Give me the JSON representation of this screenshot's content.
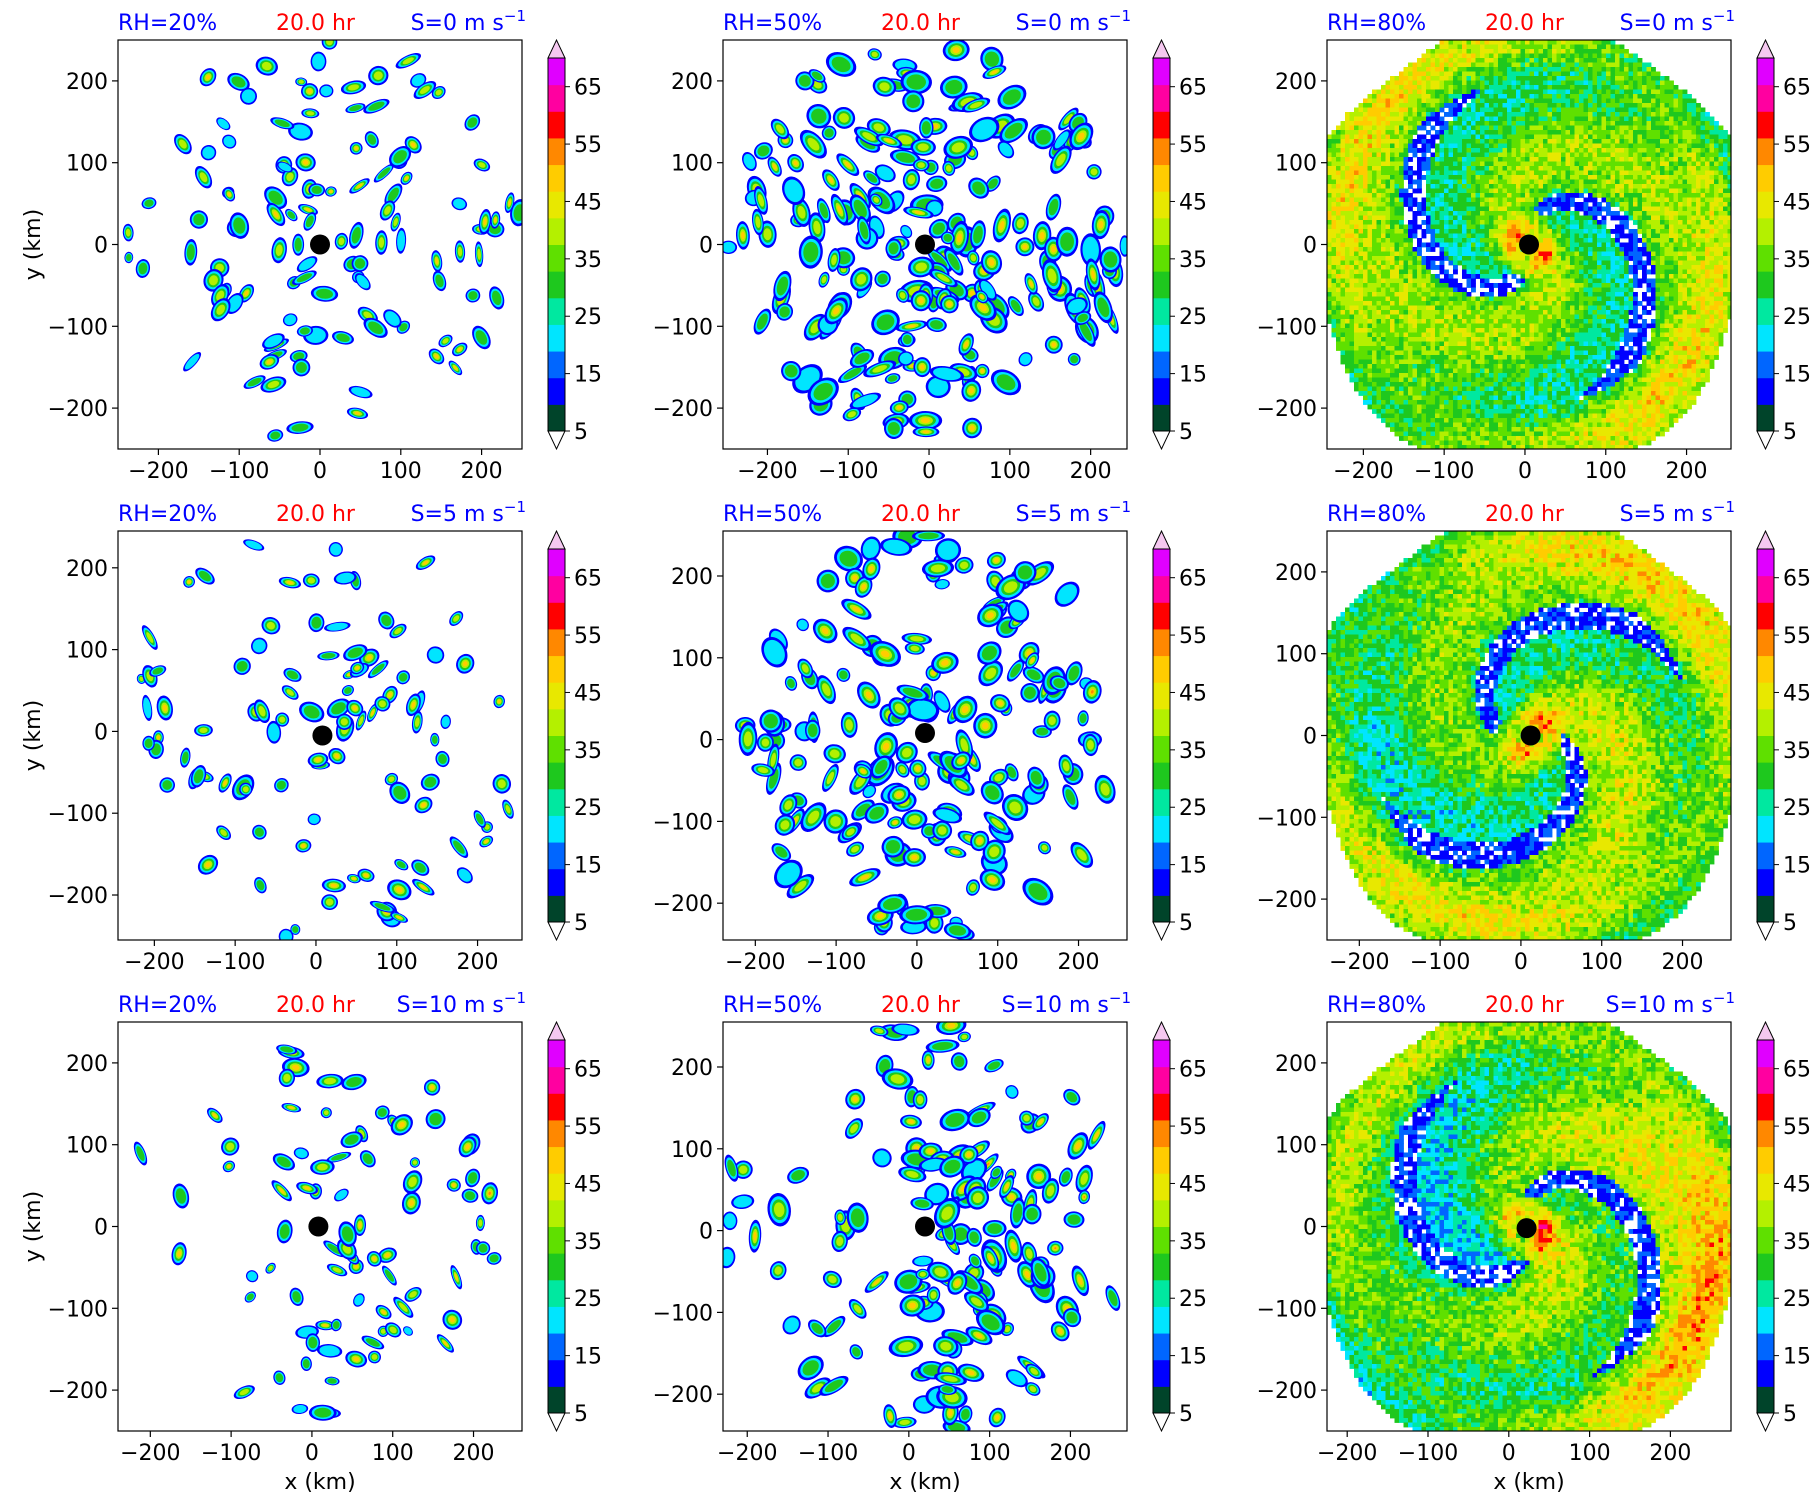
{
  "figure": {
    "time_label": "20.0 hr",
    "x_axis_label": "x (km)",
    "y_axis_label": "y (km)"
  },
  "colors": {
    "rh_label": "#0000ff",
    "time_label": "#ff0000",
    "shear_label": "#0000ff",
    "center_marker": "#000000"
  },
  "colorbar": {
    "levels": [
      5,
      10,
      15,
      20,
      25,
      30,
      35,
      40,
      45,
      50,
      55,
      60,
      65,
      70
    ],
    "tick_labels": [
      "5",
      "15",
      "25",
      "35",
      "45",
      "55",
      "65"
    ],
    "colors": [
      "#00442a",
      "#0000ff",
      "#0066ff",
      "#00e5ff",
      "#00e8a0",
      "#1ec81e",
      "#5fe000",
      "#b4f000",
      "#e8e800",
      "#ffcc00",
      "#ff8800",
      "#ff0000",
      "#ff00a0",
      "#e000ff",
      "#d070e8",
      "#f5c8f0"
    ],
    "extend": "both"
  },
  "chart_data": [
    {
      "type": "heatmap",
      "panel": "a",
      "rh": "RH=20%",
      "time": "20.0 hr",
      "shear_text": "S=0 m s",
      "shear_exp": "−1",
      "xlabel": "",
      "ylabel": "y (km)",
      "xlim": [
        -250,
        250
      ],
      "ylim": [
        -250,
        250
      ],
      "xticks": [
        -200,
        -100,
        0,
        100,
        200
      ],
      "yticks": [
        -200,
        -100,
        0,
        100,
        200
      ],
      "center": [
        0,
        0
      ],
      "coverage": "sparse",
      "shear_ms": 0
    },
    {
      "type": "heatmap",
      "panel": "b",
      "rh": "RH=50%",
      "time": "20.0 hr",
      "shear_text": "S=0 m s",
      "shear_exp": "−1",
      "xlabel": "",
      "ylabel": "",
      "xlim": [
        -255,
        245
      ],
      "ylim": [
        -250,
        250
      ],
      "xticks": [
        -200,
        -100,
        0,
        100,
        200
      ],
      "yticks": [
        -200,
        -100,
        0,
        100,
        200
      ],
      "center": [
        -5,
        0
      ],
      "coverage": "medium",
      "shear_ms": 0
    },
    {
      "type": "heatmap",
      "panel": "c",
      "rh": "RH=80%",
      "time": "20.0 hr",
      "shear_text": "S=0 m s",
      "shear_exp": "−1",
      "xlabel": "",
      "ylabel": "",
      "xlim": [
        -245,
        255
      ],
      "ylim": [
        -250,
        250
      ],
      "xticks": [
        -200,
        -100,
        0,
        100,
        200
      ],
      "yticks": [
        -200,
        -100,
        0,
        100,
        200
      ],
      "center": [
        5,
        0
      ],
      "coverage": "dense",
      "shear_ms": 0
    },
    {
      "type": "heatmap",
      "panel": "d",
      "rh": "RH=20%",
      "time": "20.0 hr",
      "shear_text": "S=5 m s",
      "shear_exp": "−1",
      "xlabel": "",
      "ylabel": "y (km)",
      "xlim": [
        -245,
        255
      ],
      "ylim": [
        -255,
        245
      ],
      "xticks": [
        -200,
        -100,
        0,
        100,
        200
      ],
      "yticks": [
        -200,
        -100,
        0,
        100,
        200
      ],
      "center": [
        8,
        -5
      ],
      "coverage": "sparse",
      "shear_ms": 5
    },
    {
      "type": "heatmap",
      "panel": "e",
      "rh": "RH=50%",
      "time": "20.0 hr",
      "shear_text": "S=5 m s",
      "shear_exp": "−1",
      "xlabel": "",
      "ylabel": "",
      "xlim": [
        -240,
        260
      ],
      "ylim": [
        -245,
        255
      ],
      "xticks": [
        -200,
        -100,
        0,
        100,
        200
      ],
      "yticks": [
        -200,
        -100,
        0,
        100,
        200
      ],
      "center": [
        10,
        8
      ],
      "coverage": "medium",
      "shear_ms": 5
    },
    {
      "type": "heatmap",
      "panel": "f",
      "rh": "RH=80%",
      "time": "20.0 hr",
      "shear_text": "S=5 m s",
      "shear_exp": "−1",
      "xlabel": "",
      "ylabel": "",
      "xlim": [
        -240,
        260
      ],
      "ylim": [
        -250,
        250
      ],
      "xticks": [
        -200,
        -100,
        0,
        100,
        200
      ],
      "yticks": [
        -200,
        -100,
        0,
        100,
        200
      ],
      "center": [
        12,
        0
      ],
      "coverage": "dense",
      "shear_ms": 5
    },
    {
      "type": "heatmap",
      "panel": "g",
      "rh": "RH=20%",
      "time": "20.0 hr",
      "shear_text": "S=10 m s",
      "shear_exp": "−1",
      "xlabel": "x (km)",
      "ylabel": "y (km)",
      "xlim": [
        -240,
        260
      ],
      "ylim": [
        -250,
        250
      ],
      "xticks": [
        -200,
        -100,
        0,
        100,
        200
      ],
      "yticks": [
        -200,
        -100,
        0,
        100,
        200
      ],
      "center": [
        8,
        0
      ],
      "coverage": "sparse",
      "shear_ms": 10
    },
    {
      "type": "heatmap",
      "panel": "h",
      "rh": "RH=50%",
      "time": "20.0 hr",
      "shear_text": "S=10 m s",
      "shear_exp": "−1",
      "xlabel": "x (km)",
      "ylabel": "",
      "xlim": [
        -230,
        270
      ],
      "ylim": [
        -245,
        255
      ],
      "xticks": [
        -200,
        -100,
        0,
        100,
        200
      ],
      "yticks": [
        -200,
        -100,
        0,
        100,
        200
      ],
      "center": [
        20,
        5
      ],
      "coverage": "medium",
      "shear_ms": 10
    },
    {
      "type": "heatmap",
      "panel": "i",
      "rh": "RH=80%",
      "time": "20.0 hr",
      "shear_text": "S=10 m s",
      "shear_exp": "−1",
      "xlabel": "x (km)",
      "ylabel": "",
      "xlim": [
        -225,
        275
      ],
      "ylim": [
        -250,
        250
      ],
      "xticks": [
        -200,
        -100,
        0,
        100,
        200
      ],
      "yticks": [
        -200,
        -100,
        0,
        100,
        200
      ],
      "center": [
        22,
        -2
      ],
      "coverage": "dense",
      "shear_ms": 10
    }
  ]
}
